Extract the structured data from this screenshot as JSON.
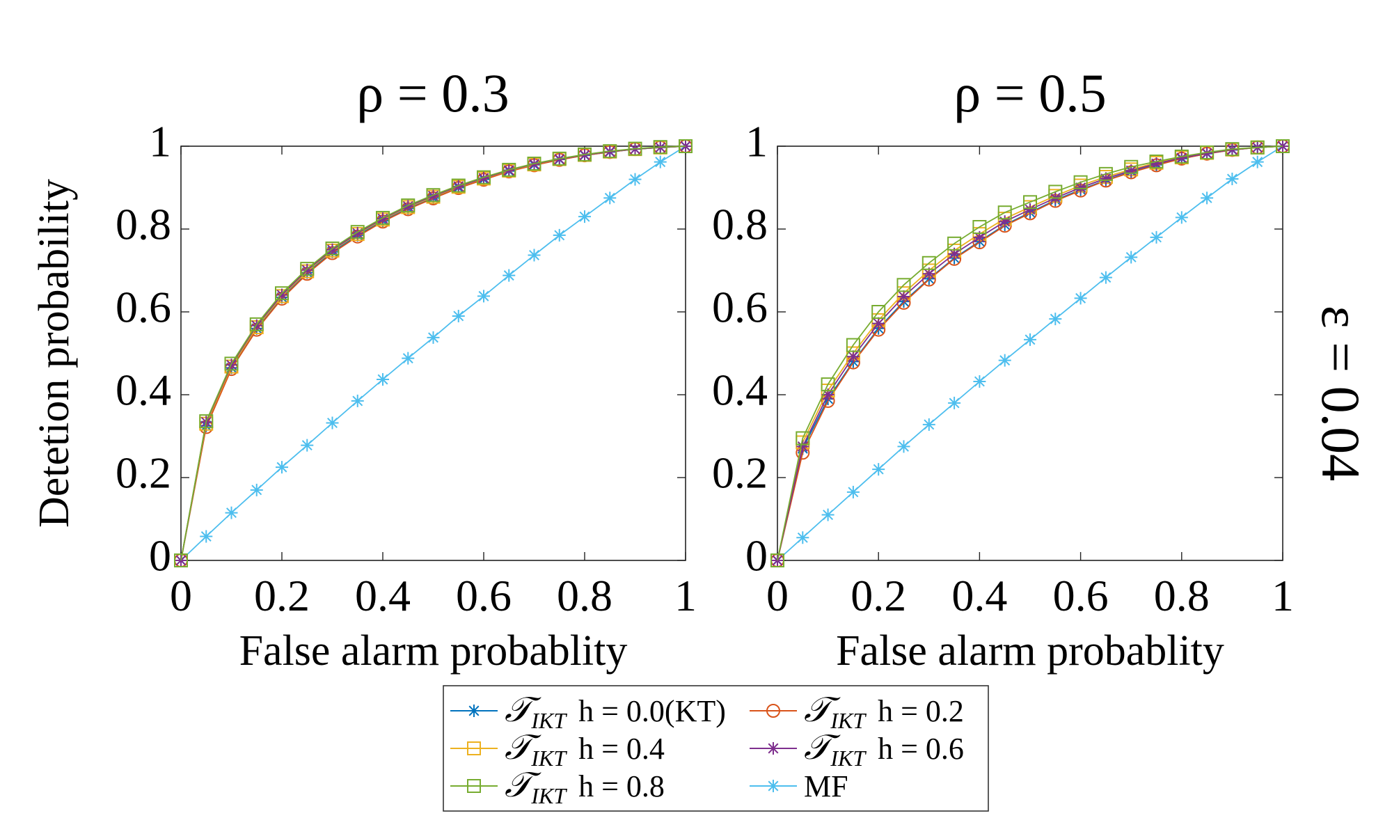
{
  "figure": {
    "side_label": "ε = 0.04",
    "legend": {
      "entries": [
        {
          "name": "T_IKT h = 0.0(KT)",
          "label_math": "𝒯",
          "label_sub": "IKT",
          "label_rest": "h = 0.0(KT)",
          "color": "#0072BD",
          "marker": "star"
        },
        {
          "name": "T_IKT h = 0.2",
          "label_math": "𝒯",
          "label_sub": "IKT",
          "label_rest": "h = 0.2",
          "color": "#D95319",
          "marker": "circle"
        },
        {
          "name": "T_IKT h = 0.4",
          "label_math": "𝒯",
          "label_sub": "IKT",
          "label_rest": "h = 0.4",
          "color": "#EDB120",
          "marker": "square"
        },
        {
          "name": "T_IKT h = 0.6",
          "label_math": "𝒯",
          "label_sub": "IKT",
          "label_rest": "h = 0.6",
          "color": "#7E2F8E",
          "marker": "star"
        },
        {
          "name": "T_IKT h = 0.8",
          "label_math": "𝒯",
          "label_sub": "IKT",
          "label_rest": "h = 0.8",
          "color": "#77AC30",
          "marker": "square"
        },
        {
          "name": "MF",
          "label_math": "",
          "label_sub": "",
          "label_rest": "MF",
          "color": "#4DBEEE",
          "marker": "star"
        }
      ]
    }
  },
  "chart_data": [
    {
      "type": "line",
      "title": "ρ = 0.3",
      "xlabel": "False alarm probablity",
      "ylabel": "Detetion probability",
      "xlim": [
        0,
        1
      ],
      "ylim": [
        0,
        1
      ],
      "xticks": [
        "0",
        "0.2",
        "0.4",
        "0.6",
        "0.8",
        "1"
      ],
      "yticks": [
        "0",
        "0.2",
        "0.4",
        "0.6",
        "0.8",
        "1"
      ],
      "x": [
        0,
        0.05,
        0.1,
        0.15,
        0.2,
        0.25,
        0.3,
        0.35,
        0.4,
        0.45,
        0.5,
        0.55,
        0.6,
        0.65,
        0.7,
        0.75,
        0.8,
        0.85,
        0.9,
        0.95,
        1
      ],
      "series": [
        {
          "name": "T_IKT h = 0.0(KT)",
          "values": [
            0,
            0.325,
            0.465,
            0.56,
            0.635,
            0.695,
            0.745,
            0.785,
            0.82,
            0.85,
            0.875,
            0.9,
            0.92,
            0.94,
            0.955,
            0.968,
            0.978,
            0.986,
            0.993,
            0.997,
            1
          ]
        },
        {
          "name": "T_IKT h = 0.2",
          "values": [
            0,
            0.322,
            0.462,
            0.557,
            0.632,
            0.692,
            0.742,
            0.782,
            0.818,
            0.848,
            0.874,
            0.899,
            0.919,
            0.939,
            0.954,
            0.967,
            0.978,
            0.986,
            0.993,
            0.997,
            1
          ]
        },
        {
          "name": "T_IKT h = 0.4",
          "values": [
            0,
            0.33,
            0.468,
            0.563,
            0.638,
            0.698,
            0.748,
            0.788,
            0.823,
            0.853,
            0.878,
            0.902,
            0.922,
            0.941,
            0.956,
            0.969,
            0.979,
            0.987,
            0.993,
            0.997,
            1
          ]
        },
        {
          "name": "T_IKT h = 0.6",
          "values": [
            0,
            0.334,
            0.472,
            0.567,
            0.641,
            0.701,
            0.75,
            0.79,
            0.825,
            0.855,
            0.88,
            0.903,
            0.923,
            0.942,
            0.957,
            0.969,
            0.979,
            0.987,
            0.993,
            0.997,
            1
          ]
        },
        {
          "name": "T_IKT h = 0.8",
          "values": [
            0,
            0.336,
            0.475,
            0.57,
            0.645,
            0.704,
            0.753,
            0.793,
            0.827,
            0.857,
            0.882,
            0.905,
            0.925,
            0.943,
            0.958,
            0.97,
            0.98,
            0.988,
            0.994,
            0.998,
            1
          ]
        },
        {
          "name": "MF",
          "values": [
            0,
            0.058,
            0.115,
            0.17,
            0.225,
            0.278,
            0.332,
            0.385,
            0.437,
            0.488,
            0.538,
            0.59,
            0.638,
            0.688,
            0.737,
            0.785,
            0.83,
            0.875,
            0.92,
            0.962,
            1
          ]
        }
      ]
    },
    {
      "type": "line",
      "title": "ρ = 0.5",
      "xlabel": "False alarm probablity",
      "ylabel": "",
      "xlim": [
        0,
        1
      ],
      "ylim": [
        0,
        1
      ],
      "xticks": [
        "0",
        "0.2",
        "0.4",
        "0.6",
        "0.8",
        "1"
      ],
      "yticks": [
        "0",
        "0.2",
        "0.4",
        "0.6",
        "0.8",
        "1"
      ],
      "x": [
        0,
        0.05,
        0.1,
        0.15,
        0.2,
        0.25,
        0.3,
        0.35,
        0.4,
        0.45,
        0.5,
        0.55,
        0.6,
        0.65,
        0.7,
        0.75,
        0.8,
        0.85,
        0.9,
        0.95,
        1
      ],
      "series": [
        {
          "name": "T_IKT h = 0.0(KT)",
          "values": [
            0,
            0.27,
            0.39,
            0.48,
            0.56,
            0.625,
            0.68,
            0.73,
            0.77,
            0.81,
            0.84,
            0.87,
            0.895,
            0.918,
            0.938,
            0.955,
            0.97,
            0.982,
            0.991,
            0.997,
            1
          ]
        },
        {
          "name": "T_IKT h = 0.2",
          "values": [
            0,
            0.26,
            0.385,
            0.478,
            0.557,
            0.622,
            0.678,
            0.728,
            0.768,
            0.808,
            0.838,
            0.868,
            0.893,
            0.917,
            0.937,
            0.954,
            0.97,
            0.982,
            0.991,
            0.997,
            1
          ]
        },
        {
          "name": "T_IKT h = 0.4",
          "values": [
            0,
            0.285,
            0.41,
            0.5,
            0.58,
            0.645,
            0.7,
            0.748,
            0.788,
            0.825,
            0.853,
            0.88,
            0.905,
            0.926,
            0.944,
            0.96,
            0.973,
            0.984,
            0.992,
            0.997,
            1
          ]
        },
        {
          "name": "T_IKT h = 0.6",
          "values": [
            0,
            0.275,
            0.4,
            0.492,
            0.572,
            0.637,
            0.692,
            0.74,
            0.78,
            0.818,
            0.847,
            0.875,
            0.9,
            0.922,
            0.941,
            0.958,
            0.972,
            0.983,
            0.992,
            0.997,
            1
          ]
        },
        {
          "name": "T_IKT h = 0.8",
          "values": [
            0,
            0.295,
            0.425,
            0.52,
            0.6,
            0.665,
            0.718,
            0.765,
            0.805,
            0.84,
            0.865,
            0.89,
            0.913,
            0.933,
            0.95,
            0.963,
            0.975,
            0.985,
            0.993,
            0.997,
            1
          ]
        },
        {
          "name": "MF",
          "values": [
            0,
            0.055,
            0.11,
            0.165,
            0.22,
            0.275,
            0.328,
            0.38,
            0.432,
            0.483,
            0.533,
            0.583,
            0.633,
            0.683,
            0.732,
            0.78,
            0.828,
            0.875,
            0.921,
            0.962,
            1
          ]
        }
      ]
    }
  ]
}
